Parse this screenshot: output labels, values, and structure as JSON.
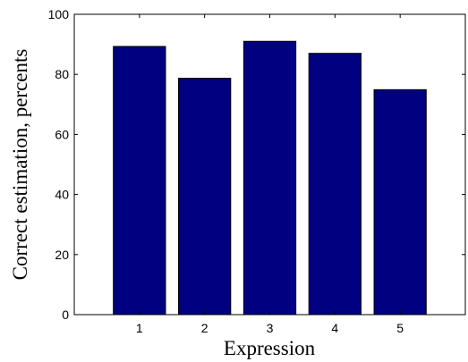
{
  "chart_data": {
    "type": "bar",
    "categories": [
      "1",
      "2",
      "3",
      "4",
      "5"
    ],
    "values": [
      89.3,
      78.7,
      91.0,
      87.0,
      74.9
    ],
    "xlabel": "Expression",
    "ylabel": "Correct estimation, percents",
    "ylim": [
      0,
      100
    ],
    "yticks": [
      "0",
      "20",
      "40",
      "60",
      "80",
      "100"
    ],
    "grid": false,
    "bar_color": "#000080",
    "edge_color": "#000000"
  }
}
